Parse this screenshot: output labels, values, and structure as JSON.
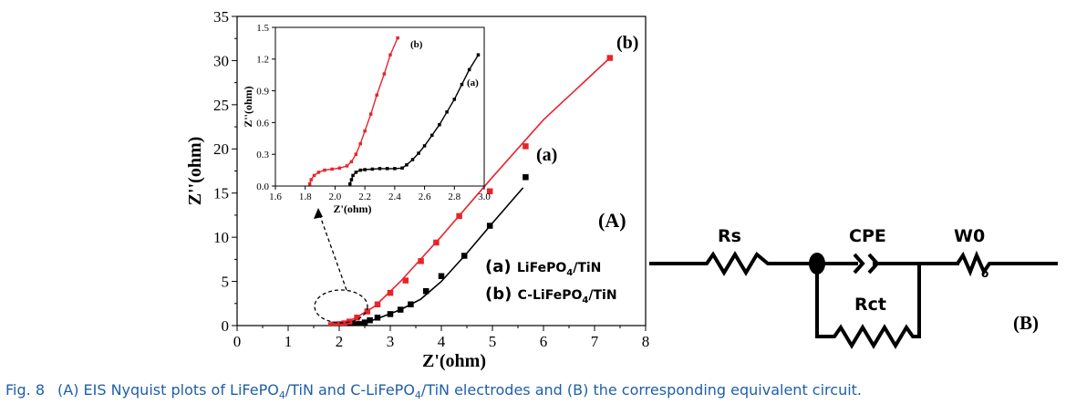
{
  "chart_data": [
    {
      "type": "scatter",
      "panel_label": "(A)",
      "xlabel": "Z'(ohm)",
      "ylabel": "Z''(ohm)",
      "xlim": [
        0,
        8
      ],
      "ylim": [
        0,
        35
      ],
      "xticks": [
        "0",
        "1",
        "2",
        "3",
        "4",
        "5",
        "6",
        "7",
        "8"
      ],
      "yticks": [
        "0",
        "5",
        "10",
        "15",
        "20",
        "25",
        "30",
        "35"
      ],
      "grid": false,
      "series": [
        {
          "label": "(a)",
          "name": "LiFePO4/TiN",
          "color": "#000000",
          "marker": "square",
          "points": [
            [
              2.12,
              0.05
            ],
            [
              2.2,
              0.12
            ],
            [
              2.3,
              0.16
            ],
            [
              2.4,
              0.17
            ],
            [
              2.5,
              0.35
            ],
            [
              2.6,
              0.6
            ],
            [
              2.75,
              0.9
            ],
            [
              3.0,
              1.3
            ],
            [
              3.2,
              1.8
            ],
            [
              3.4,
              2.4
            ],
            [
              3.7,
              3.9
            ],
            [
              4.0,
              5.6
            ],
            [
              4.45,
              7.9
            ],
            [
              4.95,
              11.3
            ],
            [
              5.65,
              16.8
            ]
          ],
          "fit": [
            [
              2.1,
              0.0
            ],
            [
              2.2,
              0.12
            ],
            [
              2.35,
              0.17
            ],
            [
              2.5,
              0.3
            ],
            [
              2.8,
              0.9
            ],
            [
              3.2,
              1.8
            ],
            [
              3.6,
              3.0
            ],
            [
              4.0,
              5.0
            ],
            [
              4.5,
              8.2
            ],
            [
              5.0,
              11.6
            ],
            [
              5.6,
              15.6
            ]
          ]
        },
        {
          "label": "(b)",
          "name": "C-LiFePO4/TiN",
          "color": "#e8242b",
          "marker": "square",
          "points": [
            [
              1.84,
              0.05
            ],
            [
              1.9,
              0.12
            ],
            [
              2.0,
              0.16
            ],
            [
              2.1,
              0.25
            ],
            [
              2.2,
              0.45
            ],
            [
              2.35,
              0.9
            ],
            [
              2.55,
              1.6
            ],
            [
              2.75,
              2.4
            ],
            [
              3.0,
              3.7
            ],
            [
              3.3,
              5.1
            ],
            [
              3.6,
              7.3
            ],
            [
              3.9,
              9.4
            ],
            [
              4.35,
              12.4
            ],
            [
              4.95,
              15.2
            ],
            [
              5.65,
              20.3
            ],
            [
              7.3,
              30.3
            ]
          ],
          "fit": [
            [
              1.82,
              0.0
            ],
            [
              2.0,
              0.16
            ],
            [
              2.3,
              0.8
            ],
            [
              2.7,
              2.2
            ],
            [
              3.2,
              5.0
            ],
            [
              4.0,
              10.1
            ],
            [
              5.0,
              16.8
            ],
            [
              6.0,
              23.3
            ],
            [
              7.3,
              30.3
            ]
          ]
        }
      ],
      "legend": {
        "placement": "bottom-right",
        "entries": [
          {
            "id": "(a)",
            "name": "LiFePO4/TiN",
            "base": "LiFePO",
            "sub": "4",
            "tail": "/TiN"
          },
          {
            "id": "(b)",
            "name": "C-LiFePO4/TiN",
            "base": "C-LiFePO",
            "sub": "4",
            "tail": "/TiN"
          }
        ]
      }
    },
    {
      "type": "scatter",
      "role": "inset",
      "xlabel": "Z'(ohm)",
      "ylabel": "Z''(ohm)",
      "xlim": [
        1.6,
        3.0
      ],
      "ylim": [
        0.0,
        1.5
      ],
      "xticks": [
        "1.6",
        "1.8",
        "2.0",
        "2.2",
        "2.4",
        "2.6",
        "2.8",
        "3.0"
      ],
      "yticks": [
        "0.0",
        "0.3",
        "0.6",
        "0.9",
        "1.2",
        "1.5"
      ],
      "series": [
        {
          "label": "(a)",
          "color": "#000000",
          "points": [
            [
              2.1,
              0.02
            ],
            [
              2.11,
              0.06
            ],
            [
              2.12,
              0.1
            ],
            [
              2.14,
              0.13
            ],
            [
              2.17,
              0.15
            ],
            [
              2.2,
              0.155
            ],
            [
              2.25,
              0.16
            ],
            [
              2.3,
              0.165
            ],
            [
              2.35,
              0.165
            ],
            [
              2.4,
              0.165
            ],
            [
              2.45,
              0.17
            ],
            [
              2.48,
              0.2
            ],
            [
              2.52,
              0.25
            ],
            [
              2.56,
              0.31
            ],
            [
              2.6,
              0.38
            ],
            [
              2.65,
              0.48
            ],
            [
              2.7,
              0.58
            ],
            [
              2.75,
              0.7
            ],
            [
              2.8,
              0.82
            ],
            [
              2.85,
              0.96
            ],
            [
              2.9,
              1.1
            ],
            [
              2.96,
              1.24
            ]
          ]
        },
        {
          "label": "(b)",
          "color": "#e8242b",
          "points": [
            [
              1.83,
              0.02
            ],
            [
              1.84,
              0.06
            ],
            [
              1.86,
              0.1
            ],
            [
              1.89,
              0.13
            ],
            [
              1.93,
              0.15
            ],
            [
              1.98,
              0.16
            ],
            [
              2.03,
              0.17
            ],
            [
              2.08,
              0.19
            ],
            [
              2.11,
              0.23
            ],
            [
              2.14,
              0.3
            ],
            [
              2.17,
              0.4
            ],
            [
              2.2,
              0.52
            ],
            [
              2.24,
              0.68
            ],
            [
              2.28,
              0.86
            ],
            [
              2.33,
              1.06
            ],
            [
              2.37,
              1.24
            ],
            [
              2.42,
              1.4
            ]
          ]
        }
      ]
    }
  ],
  "circuit": {
    "label": "(B)",
    "elements": [
      "Rs",
      "CPE",
      "W0",
      "Rct"
    ],
    "w_sub": "o"
  },
  "caption": {
    "fig": "Fig. 8",
    "text_parts": [
      "(A) EIS Nyquist plots of LiFePO",
      "4",
      "/TiN and C-LiFePO",
      "4",
      "/TiN electrodes and (B) the corresponding equivalent circuit."
    ]
  },
  "colors": {
    "series_a": "#000000",
    "series_b": "#e8242b",
    "caption": "#1e5fa8"
  }
}
